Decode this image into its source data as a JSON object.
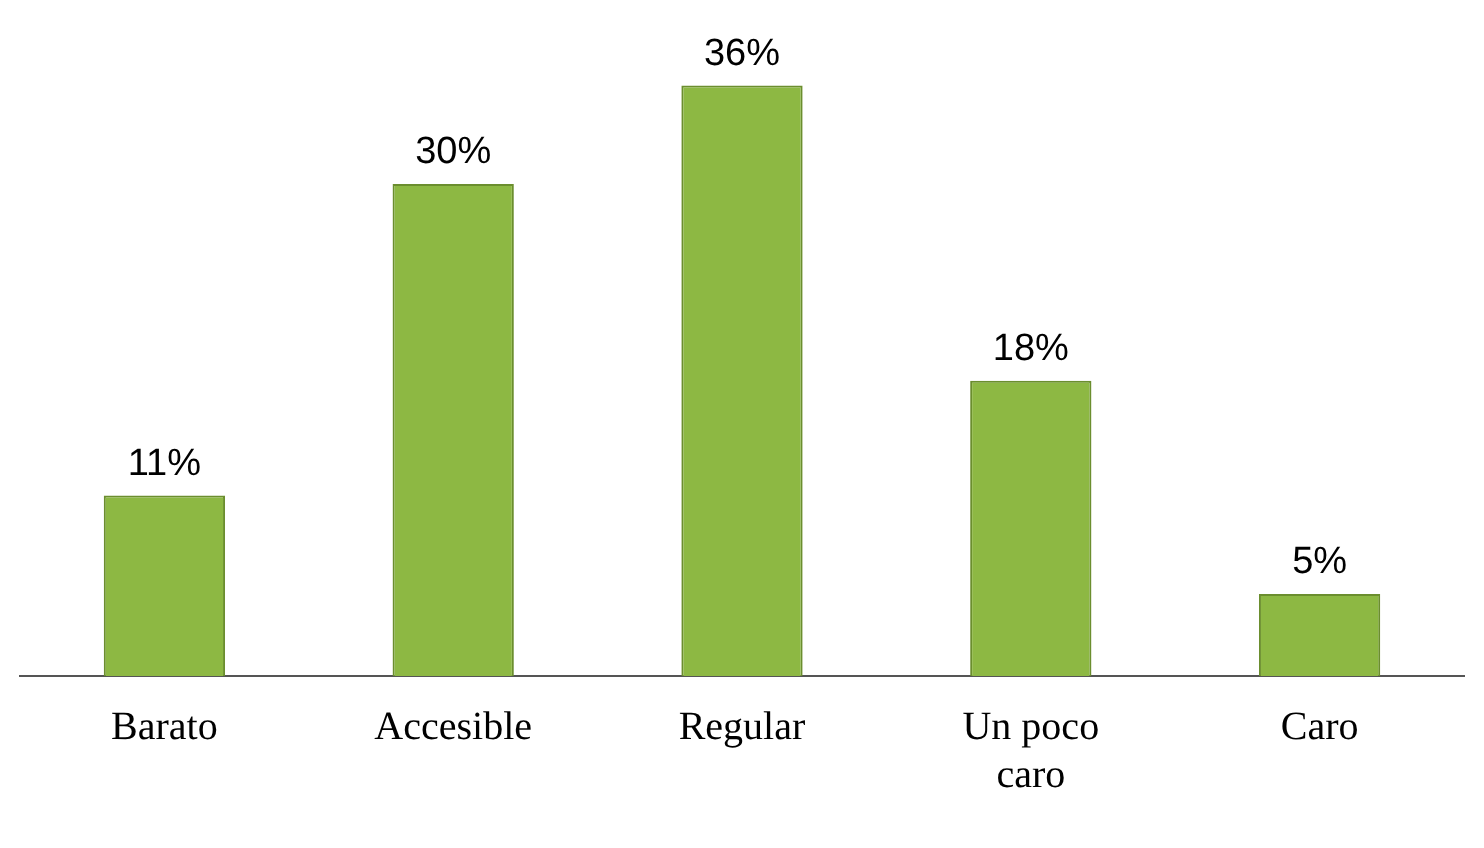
{
  "chart_data": {
    "type": "bar",
    "categories": [
      "Barato",
      "Accesible",
      "Regular",
      "Un poco caro",
      "Caro"
    ],
    "values": [
      11,
      30,
      36,
      18,
      5
    ],
    "value_labels": [
      "11%",
      "30%",
      "36%",
      "18%",
      "5%"
    ],
    "color": "#8db843",
    "grid": false,
    "legend": false
  }
}
